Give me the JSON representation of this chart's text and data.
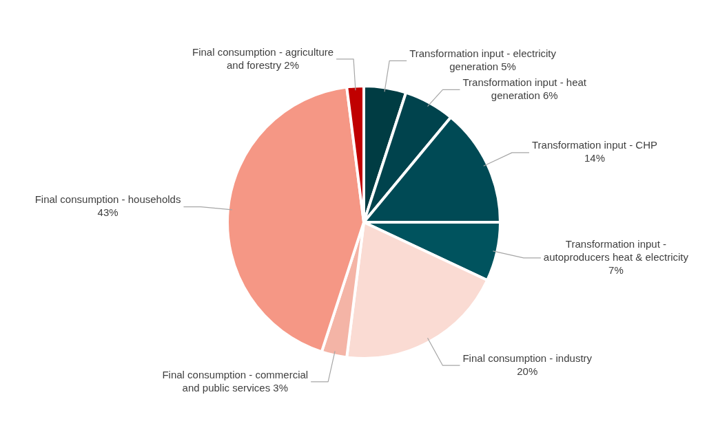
{
  "chart_data": {
    "type": "pie",
    "categories": [
      "Transformation input - electricity generation",
      "Transformation input - heat generation",
      "Transformation input - CHP",
      "Transformation input - autoproducers heat & electricity",
      "Final consumption - industry",
      "Final consumption - commercial and public services",
      "Final consumption - households",
      "Final consumption - agriculture and forestry"
    ],
    "values": [
      5,
      6,
      14,
      7,
      20,
      3,
      43,
      2
    ],
    "colors": [
      "#003c43",
      "#00434d",
      "#004a55",
      "#00535e",
      "#fadbd3",
      "#f4b4a6",
      "#f59785",
      "#c00000"
    ],
    "value_labels": [
      "5%",
      "6%",
      "14%",
      "7%",
      "20%",
      "3%",
      "43%",
      "2%"
    ],
    "legend": false
  }
}
